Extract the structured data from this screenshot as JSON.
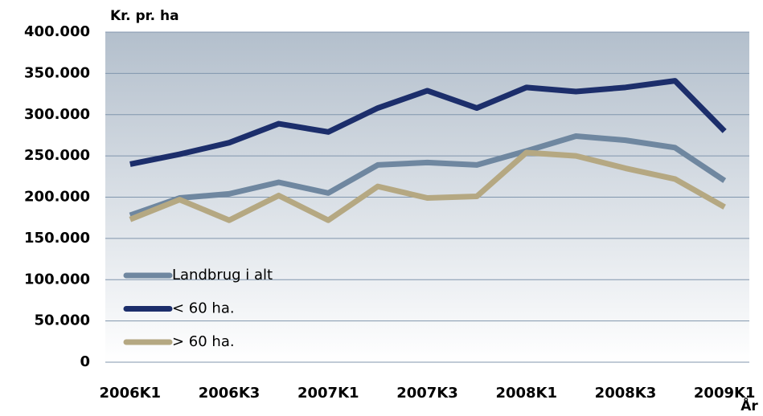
{
  "chart_data": {
    "type": "line",
    "y_label": "Kr. pr. ha",
    "x_label": "År",
    "categories": [
      "2006K1",
      null,
      "2006K3",
      null,
      "2007K1",
      null,
      "2007K3",
      null,
      "2008K1",
      null,
      "2008K3",
      null,
      "2009K1"
    ],
    "series": [
      {
        "name": "Landbrug i alt",
        "color": "#6f87a0",
        "values": [
          178,
          199,
          204,
          218,
          205,
          239,
          242,
          239,
          256,
          274,
          269,
          260,
          220
        ]
      },
      {
        "name": "< 60 ha.",
        "color": "#1c2e6b",
        "values": [
          240,
          252,
          266,
          289,
          279,
          308,
          329,
          308,
          333,
          328,
          333,
          341,
          280
        ]
      },
      {
        "name": "> 60 ha.",
        "color": "#b5a882",
        "values": [
          173,
          197,
          172,
          202,
          172,
          213,
          199,
          201,
          254,
          250,
          235,
          222,
          188
        ]
      }
    ],
    "value_scale": 1000,
    "ylim": [
      0,
      400000
    ],
    "yticks": [
      0,
      {
        "value": 50000,
        "label": "50.000"
      },
      {
        "value": 100000,
        "label": "100.000"
      },
      {
        "value": 150000,
        "label": "150.000"
      },
      {
        "value": 200000,
        "label": "200.000"
      },
      {
        "value": 250000,
        "label": "250.000"
      },
      {
        "value": 300000,
        "label": "300.000"
      },
      {
        "value": 350000,
        "label": "350.000"
      },
      {
        "value": 400000,
        "label": "400.000"
      }
    ],
    "grid": true,
    "legend": "lower-left"
  }
}
